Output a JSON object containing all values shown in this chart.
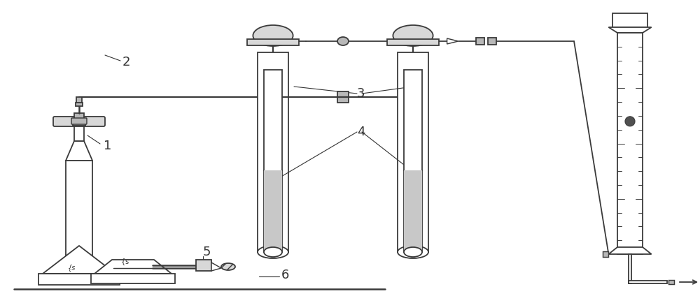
{
  "bg_color": "#ffffff",
  "line_color": "#3a3a3a",
  "gray_fill": "#b8b8b8",
  "light_gray": "#d8d8d8",
  "liquid_color": "#c8c8c8",
  "figsize": [
    10.0,
    4.34
  ],
  "dpi": 100,
  "lw": 1.3
}
